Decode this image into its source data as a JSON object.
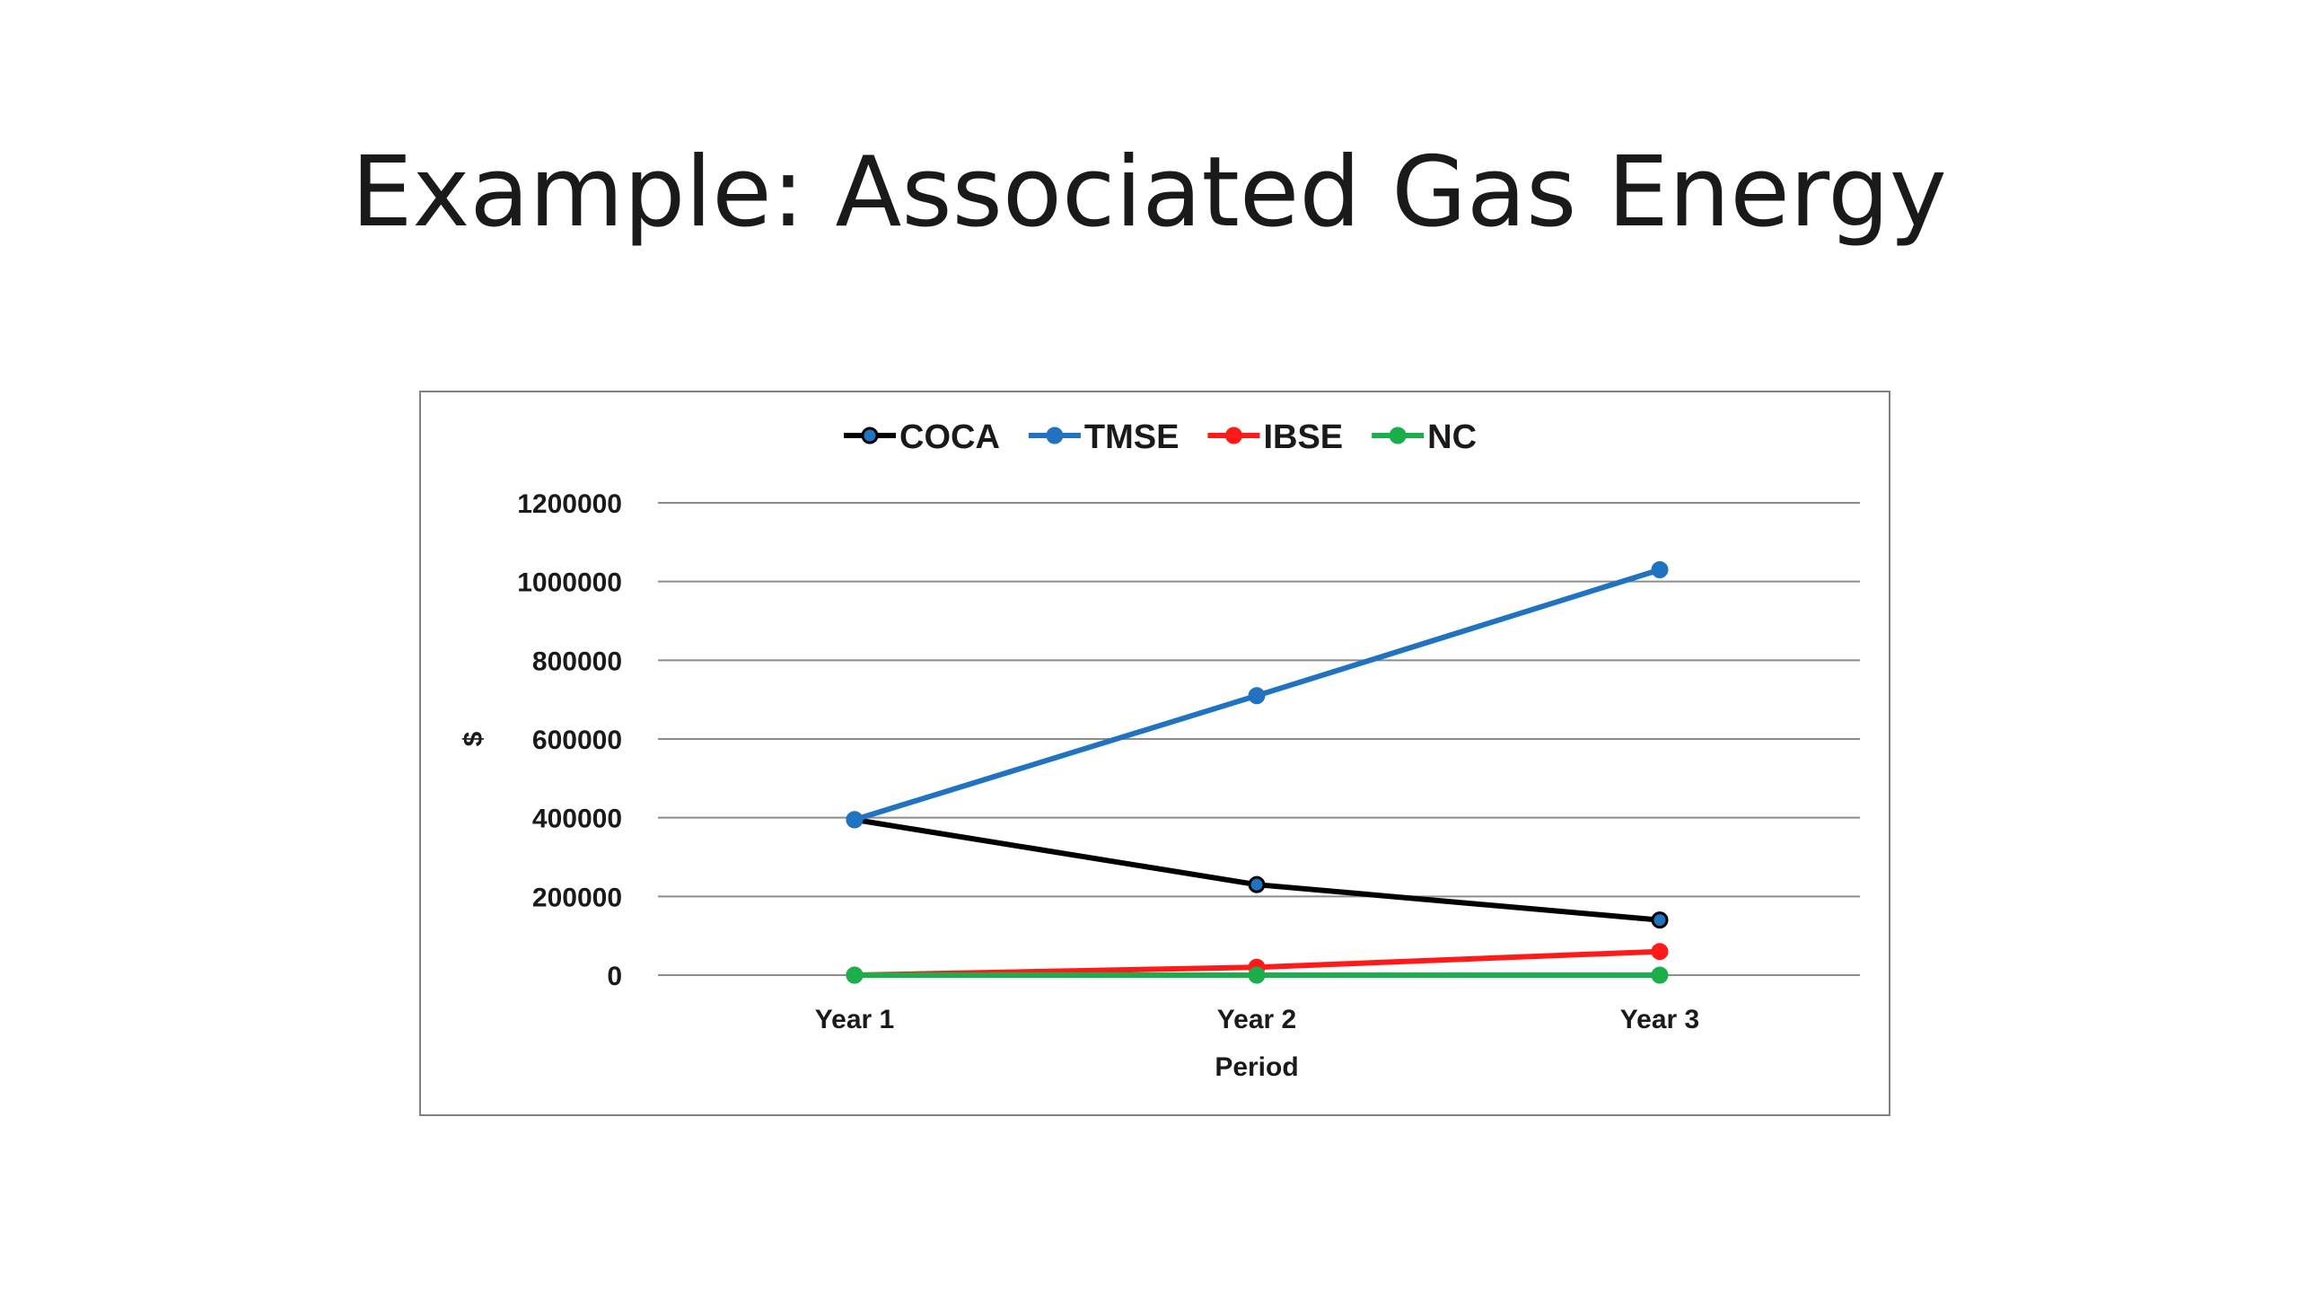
{
  "slide": {
    "title": "Example: Associated Gas Energy"
  },
  "chart_data": {
    "type": "line",
    "categories": [
      "Year 1",
      "Year 2",
      "Year 3"
    ],
    "series": [
      {
        "name": "COCA",
        "color": "#000000",
        "values": [
          395000,
          230000,
          140000
        ]
      },
      {
        "name": "TMSE",
        "color": "#1f73c0",
        "values": [
          395000,
          710000,
          1030000
        ]
      },
      {
        "name": "IBSE",
        "color": "#ff1a1a",
        "values": [
          0,
          20000,
          60000
        ]
      },
      {
        "name": "NC",
        "color": "#1aaf4a",
        "values": [
          0,
          0,
          0
        ]
      }
    ],
    "xlabel": "Period",
    "ylabel": "$",
    "ylim": [
      0,
      1200000
    ],
    "yticks": [
      0,
      200000,
      400000,
      600000,
      800000,
      1000000,
      1200000
    ],
    "grid": true,
    "legend_position": "top"
  }
}
